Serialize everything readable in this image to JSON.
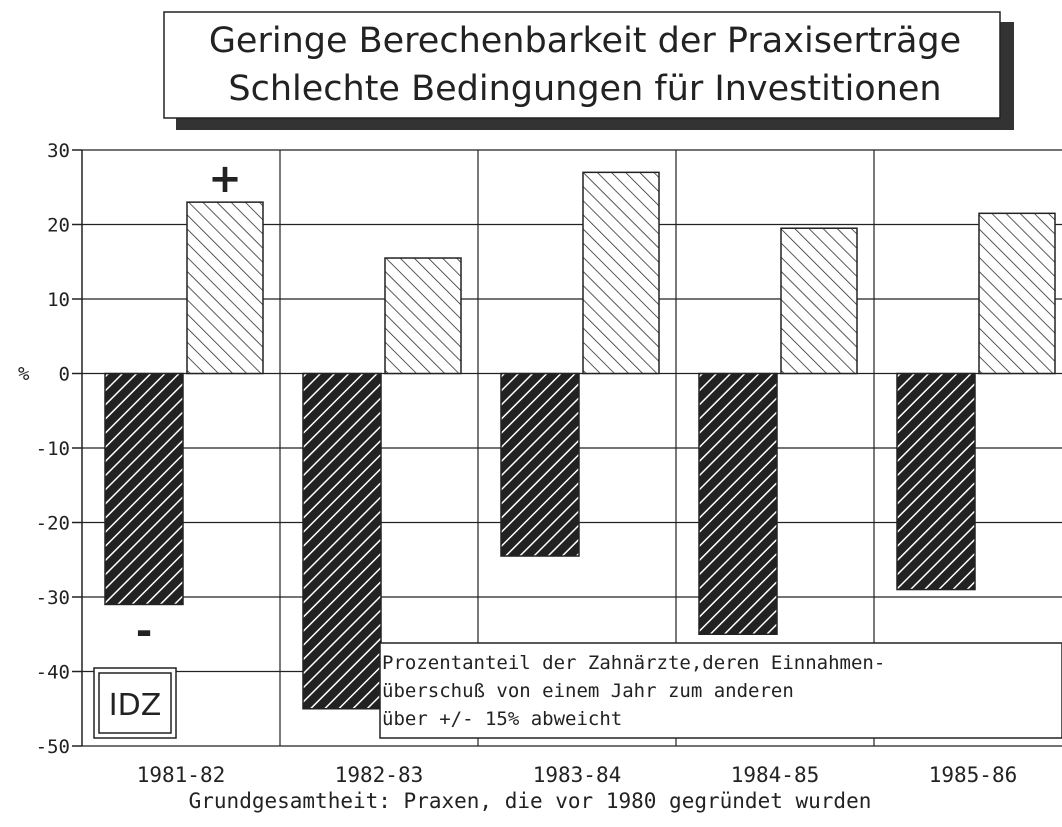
{
  "chart_data": {
    "type": "bar",
    "title": [
      "Geringe Berechenbarkeit der Praxiserträge",
      "Schlechte Bedingungen für Investitionen"
    ],
    "y_label": "%",
    "categories": [
      "1981-82",
      "1982-83",
      "1983-84",
      "1984-85",
      "1985-86"
    ],
    "series": [
      {
        "name": "-",
        "color": "#222222",
        "values": [
          -31,
          -45,
          -24.5,
          -35,
          -29
        ]
      },
      {
        "name": "+",
        "color": "#ffffff",
        "values": [
          23,
          15.5,
          27,
          19.5,
          21.5
        ]
      }
    ],
    "ylim": [
      -50,
      30
    ],
    "yticks": [
      30,
      20,
      10,
      0,
      -10,
      -20,
      -30,
      -40,
      -50
    ],
    "grid": true,
    "annotation": [
      "Prozentanteil der Zahnärzte,deren Einnahmen-",
      "überschuß von einem Jahr zum anderen",
      "über +/- 15% abweicht"
    ],
    "logo": "IDZ",
    "footnote": "Grundgesamtheit: Praxen, die vor 1980 gegründet wurden"
  }
}
